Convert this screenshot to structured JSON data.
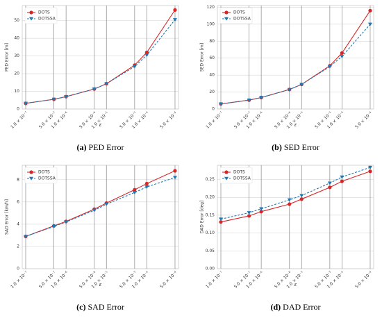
{
  "chart_data": [
    {
      "type": "line",
      "caption_label": "(a)",
      "caption": "PED Error",
      "ylabel": "PED Error [m]",
      "xlabel": "ε",
      "xscale": "log",
      "grid": true,
      "legend": "upper left",
      "x": [
        1e-07,
        5e-07,
        1e-06,
        5e-06,
        1e-05,
        5e-05,
        0.0001,
        0.0005
      ],
      "xlim": [
        8.2e-08,
        0.00061
      ],
      "xticks": [
        {
          "value": 1e-07,
          "label": "1.0 × 10⁻⁷"
        },
        {
          "value": 5e-07,
          "label": "5.0 × 10⁻⁷"
        },
        {
          "value": 1e-06,
          "label": "1.0 × 10⁻⁶"
        },
        {
          "value": 5e-06,
          "label": "5.0 × 10⁻⁶"
        },
        {
          "value": 1e-05,
          "label": "1.0 × 10⁻⁵"
        },
        {
          "value": 5e-05,
          "label": "5.0 × 10⁻⁵"
        },
        {
          "value": 0.0001,
          "label": "1.0 × 10⁻⁴"
        },
        {
          "value": 0.0005,
          "label": "5.0 × 10⁻⁴"
        }
      ],
      "ylim": [
        0,
        58.5
      ],
      "yticks": [
        0,
        10,
        20,
        30,
        40,
        50
      ],
      "series": [
        {
          "name": "DOTS",
          "color": "#d62728",
          "marker": "circle",
          "dash": false,
          "values": [
            3.2,
            5.5,
            7,
            11.3,
            14.3,
            24.8,
            32,
            56
          ]
        },
        {
          "name": "DOTSSA",
          "color": "#1f77b4",
          "marker": "triangle",
          "dash": true,
          "values": [
            3.2,
            5.5,
            7,
            11.3,
            14.3,
            24,
            30.5,
            50.5
          ]
        }
      ]
    },
    {
      "type": "line",
      "caption_label": "(b)",
      "caption": "SED Error",
      "ylabel": "SED Error [m]",
      "xlabel": "ε",
      "xscale": "log",
      "grid": true,
      "legend": "upper left",
      "x": [
        1e-07,
        5e-07,
        1e-06,
        5e-06,
        1e-05,
        5e-05,
        0.0001,
        0.0005
      ],
      "xlim": [
        8.2e-08,
        0.00061
      ],
      "xticks": [
        {
          "value": 1e-07,
          "label": "1.0 × 10⁻⁷"
        },
        {
          "value": 5e-07,
          "label": "5.0 × 10⁻⁷"
        },
        {
          "value": 1e-06,
          "label": "1.0 × 10⁻⁶"
        },
        {
          "value": 5e-06,
          "label": "5.0 × 10⁻⁶"
        },
        {
          "value": 1e-05,
          "label": "1.0 × 10⁻⁵"
        },
        {
          "value": 5e-05,
          "label": "5.0 × 10⁻⁵"
        },
        {
          "value": 0.0001,
          "label": "1.0 × 10⁻⁴"
        },
        {
          "value": 0.0005,
          "label": "5.0 × 10⁻⁴"
        }
      ],
      "ylim": [
        0,
        122
      ],
      "yticks": [
        0,
        20,
        40,
        60,
        80,
        100,
        120
      ],
      "series": [
        {
          "name": "DOTS",
          "color": "#d62728",
          "marker": "circle",
          "dash": false,
          "values": [
            6,
            10.5,
            13.5,
            23,
            29,
            51,
            66,
            116
          ]
        },
        {
          "name": "DOTSSA",
          "color": "#1f77b4",
          "marker": "triangle",
          "dash": true,
          "values": [
            6,
            10.5,
            13.5,
            23,
            29,
            50,
            62,
            100
          ]
        }
      ]
    },
    {
      "type": "line",
      "caption_label": "(c)",
      "caption": "SAD Error",
      "ylabel": "SAD Error [km/h]",
      "xlabel": "ε",
      "xscale": "log",
      "grid": true,
      "legend": "upper left",
      "x": [
        1e-07,
        5e-07,
        1e-06,
        5e-06,
        1e-05,
        5e-05,
        0.0001,
        0.0005
      ],
      "xlim": [
        8.2e-08,
        0.00061
      ],
      "xticks": [
        {
          "value": 1e-07,
          "label": "1.0 × 10⁻⁷"
        },
        {
          "value": 5e-07,
          "label": "5.0 × 10⁻⁷"
        },
        {
          "value": 1e-06,
          "label": "1.0 × 10⁻⁶"
        },
        {
          "value": 5e-06,
          "label": "5.0 × 10⁻⁶"
        },
        {
          "value": 1e-05,
          "label": "1.0 × 10⁻⁵"
        },
        {
          "value": 5e-05,
          "label": "5.0 × 10⁻⁵"
        },
        {
          "value": 0.0001,
          "label": "1.0 × 10⁻⁴"
        },
        {
          "value": 0.0005,
          "label": "5.0 × 10⁻⁴"
        }
      ],
      "ylim": [
        0,
        9.3
      ],
      "yticks": [
        0,
        2,
        4,
        6,
        8
      ],
      "series": [
        {
          "name": "DOTS",
          "color": "#d62728",
          "marker": "circle",
          "dash": false,
          "values": [
            2.9,
            3.85,
            4.25,
            5.35,
            5.9,
            7.1,
            7.65,
            8.8
          ]
        },
        {
          "name": "DOTSSA",
          "color": "#1f77b4",
          "marker": "triangle",
          "dash": true,
          "values": [
            2.9,
            3.8,
            4.2,
            5.25,
            5.8,
            6.85,
            7.35,
            8.2
          ]
        }
      ]
    },
    {
      "type": "line",
      "caption_label": "(d)",
      "caption": "DAD Error",
      "ylabel": "DAD Error [deg]",
      "xlabel": "ε",
      "xscale": "log",
      "grid": true,
      "legend": "upper left",
      "x": [
        1e-07,
        5e-07,
        1e-06,
        5e-06,
        1e-05,
        5e-05,
        0.0001,
        0.0005
      ],
      "xlim": [
        8.2e-08,
        0.00061
      ],
      "xticks": [
        {
          "value": 1e-07,
          "label": "1.0 × 10⁻⁷"
        },
        {
          "value": 5e-07,
          "label": "5.0 × 10⁻⁷"
        },
        {
          "value": 1e-06,
          "label": "1.0 × 10⁻⁶"
        },
        {
          "value": 5e-06,
          "label": "5.0 × 10⁻⁶"
        },
        {
          "value": 1e-05,
          "label": "1.0 × 10⁻⁵"
        },
        {
          "value": 5e-05,
          "label": "5.0 × 10⁻⁵"
        },
        {
          "value": 0.0001,
          "label": "1.0 × 10⁻⁴"
        },
        {
          "value": 0.0005,
          "label": "5.0 × 10⁻⁴"
        }
      ],
      "ylim": [
        0,
        0.29
      ],
      "yticks": [
        {
          "value": 0,
          "label": "0.00"
        },
        {
          "value": 0.05,
          "label": "0.05"
        },
        {
          "value": 0.1,
          "label": "0.10"
        },
        {
          "value": 0.15,
          "label": "0.15"
        },
        {
          "value": 0.2,
          "label": "0.20"
        },
        {
          "value": 0.25,
          "label": "0.25"
        }
      ],
      "series": [
        {
          "name": "DOTS",
          "color": "#d62728",
          "marker": "circle",
          "dash": false,
          "values": [
            0.131,
            0.148,
            0.16,
            0.181,
            0.195,
            0.228,
            0.245,
            0.273
          ]
        },
        {
          "name": "DOTSSA",
          "color": "#1f77b4",
          "marker": "triangle",
          "dash": true,
          "values": [
            0.139,
            0.157,
            0.168,
            0.193,
            0.205,
            0.24,
            0.257,
            0.284
          ]
        }
      ]
    }
  ]
}
